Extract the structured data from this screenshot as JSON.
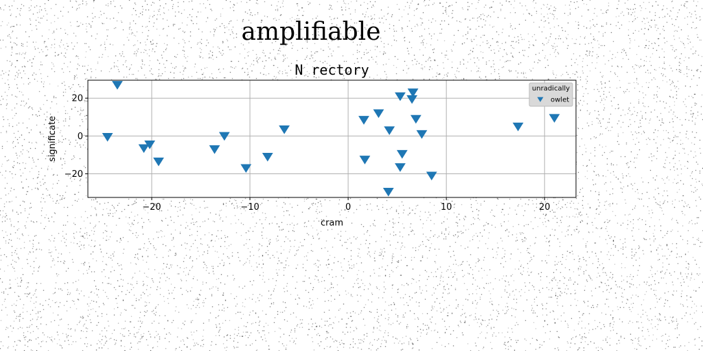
{
  "suptitle": "amplifiable",
  "chart_data": {
    "type": "scatter",
    "title": "N rectory",
    "xlabel": "cram",
    "ylabel": "significate",
    "xlim": [
      -26.5,
      23.2
    ],
    "ylim": [
      -32.5,
      29.5
    ],
    "xticks": [
      -20,
      -10,
      0,
      10,
      20
    ],
    "yticks": [
      -20,
      0,
      20
    ],
    "grid": true,
    "legend": {
      "title": "unradically",
      "placement": "top-right"
    },
    "series": [
      {
        "name": "owlet",
        "marker": "triangle-down",
        "color": "#1f77b4",
        "points": [
          {
            "x": -23.5,
            "y": 27.0
          },
          {
            "x": -24.5,
            "y": -0.5
          },
          {
            "x": -20.8,
            "y": -6.5
          },
          {
            "x": -20.2,
            "y": -4.5
          },
          {
            "x": -19.3,
            "y": -13.5
          },
          {
            "x": -13.6,
            "y": -7.0
          },
          {
            "x": -12.6,
            "y": 0.0
          },
          {
            "x": -10.4,
            "y": -17.0
          },
          {
            "x": -8.2,
            "y": -11.0
          },
          {
            "x": -6.5,
            "y": 3.5
          },
          {
            "x": 1.6,
            "y": 8.5
          },
          {
            "x": 1.7,
            "y": -12.5
          },
          {
            "x": 3.1,
            "y": 12.0
          },
          {
            "x": 4.1,
            "y": -29.5
          },
          {
            "x": 4.2,
            "y": 3.0
          },
          {
            "x": 5.3,
            "y": 21.0
          },
          {
            "x": 5.3,
            "y": -16.5
          },
          {
            "x": 5.5,
            "y": -9.5
          },
          {
            "x": 6.5,
            "y": 19.5
          },
          {
            "x": 6.6,
            "y": 23.0
          },
          {
            "x": 6.9,
            "y": 9.0
          },
          {
            "x": 7.5,
            "y": 1.0
          },
          {
            "x": 8.5,
            "y": -21.0
          },
          {
            "x": 17.3,
            "y": 5.0
          },
          {
            "x": 21.0,
            "y": 9.5
          }
        ]
      }
    ]
  }
}
